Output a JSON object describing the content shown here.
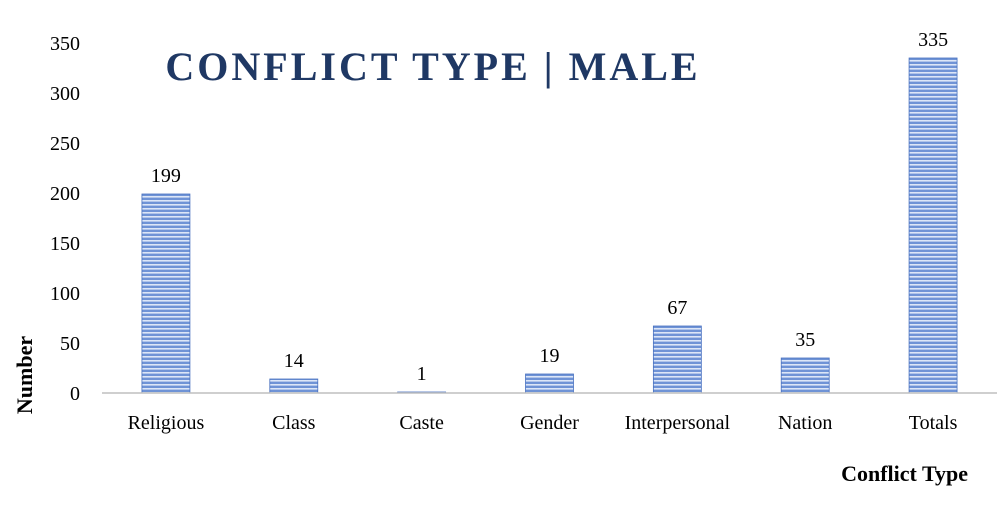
{
  "chart_data": {
    "type": "bar",
    "title": "CONFLICT TYPE | MALE",
    "xlabel": "Conflict Type",
    "ylabel": "Number",
    "categories": [
      "Religious",
      "Class",
      "Caste",
      "Gender",
      "Interpersonal",
      "Nation",
      "Totals"
    ],
    "values": [
      199,
      14,
      1,
      19,
      67,
      35,
      335
    ],
    "ylim": [
      0,
      350
    ],
    "yticks": [
      0,
      50,
      100,
      150,
      200,
      250,
      300,
      350
    ],
    "grid": false,
    "legend": "none",
    "colors": {
      "bar": "#6f93d6",
      "bar_stripe": "#dce6f7",
      "bar_edge": "#4a72c0",
      "title": "#1f3864",
      "axis": "#bfbfbf"
    }
  }
}
